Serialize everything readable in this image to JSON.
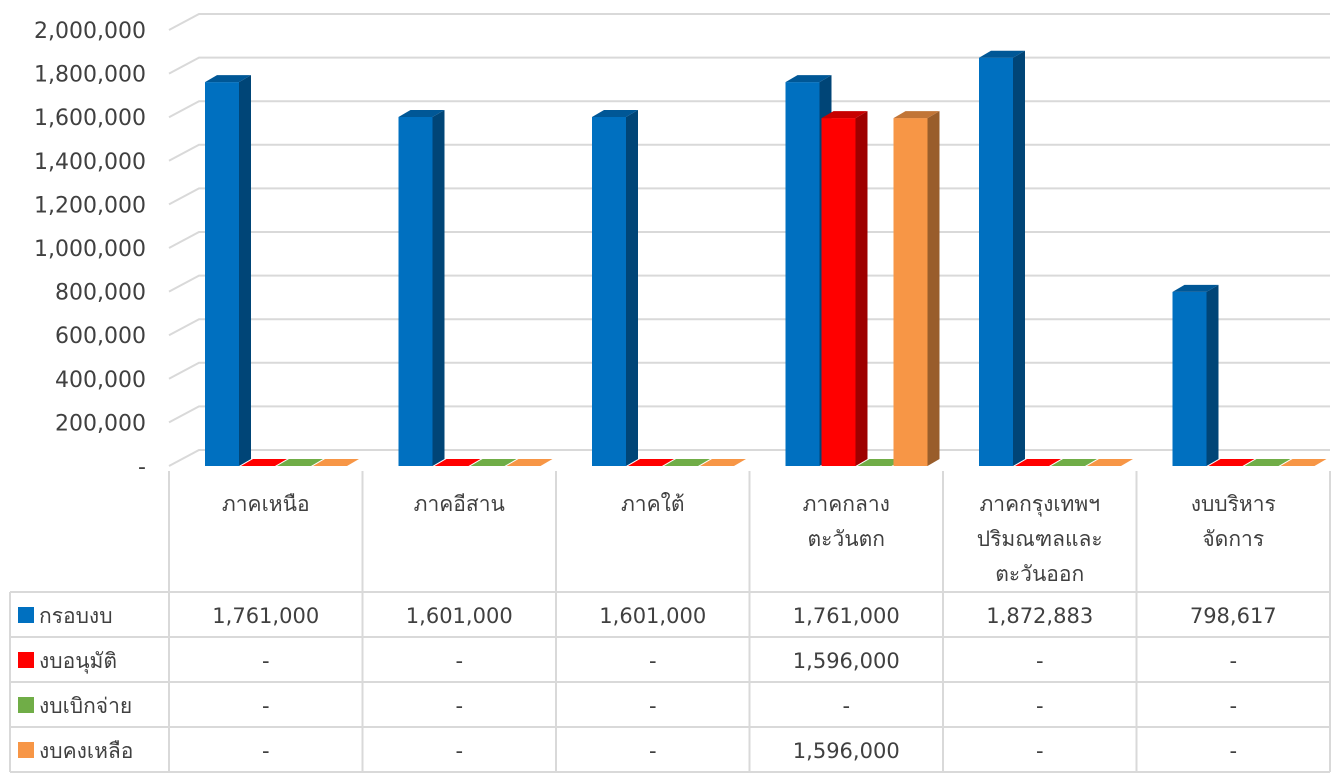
{
  "chart_data": {
    "type": "bar",
    "style": "3d-clustered-column-with-data-table",
    "categories": [
      [
        "ภาคเหนือ"
      ],
      [
        "ภาคอีสาน"
      ],
      [
        "ภาคใต้"
      ],
      [
        "ภาคกลาง",
        "ตะวันตก"
      ],
      [
        "ภาคกรุงเทพฯ",
        "ปริมณฑลและ",
        "ตะวันออก"
      ],
      [
        "งบบริหาร",
        "จัดการ"
      ]
    ],
    "ylim": [
      0,
      2000000
    ],
    "yticks": [
      {
        "value": 0,
        "label": "-"
      },
      {
        "value": 200000,
        "label": "200,000"
      },
      {
        "value": 400000,
        "label": "400,000"
      },
      {
        "value": 600000,
        "label": "600,000"
      },
      {
        "value": 800000,
        "label": "800,000"
      },
      {
        "value": 1000000,
        "label": "1,000,000"
      },
      {
        "value": 1200000,
        "label": "1,200,000"
      },
      {
        "value": 1400000,
        "label": "1,400,000"
      },
      {
        "value": 1600000,
        "label": "1,600,000"
      },
      {
        "value": 1800000,
        "label": "1,800,000"
      },
      {
        "value": 2000000,
        "label": "2,000,000"
      }
    ],
    "grid": true,
    "legend": "data-table-left",
    "series": [
      {
        "name": "กรอบงบ",
        "color": "#0070C0",
        "values": [
          1761000,
          1601000,
          1601000,
          1761000,
          1872883,
          798617
        ],
        "labels": [
          "1,761,000",
          "1,601,000",
          "1,601,000",
          "1,761,000",
          "1,872,883",
          "798,617"
        ]
      },
      {
        "name": "งบอนุมัติ",
        "color": "#FF0000",
        "values": [
          0,
          0,
          0,
          1596000,
          0,
          0
        ],
        "labels": [
          "-",
          "-",
          "-",
          "1,596,000",
          "-",
          "-"
        ]
      },
      {
        "name": "งบเบิกจ่าย",
        "color": "#70AD47",
        "values": [
          0,
          0,
          0,
          0,
          0,
          0
        ],
        "labels": [
          "-",
          "-",
          "-",
          "-",
          "-",
          "-"
        ]
      },
      {
        "name": "งบคงเหลือ",
        "color": "#F79646",
        "values": [
          0,
          0,
          0,
          1596000,
          0,
          0
        ],
        "labels": [
          "-",
          "-",
          "-",
          "1,596,000",
          "-",
          "-"
        ]
      }
    ]
  }
}
